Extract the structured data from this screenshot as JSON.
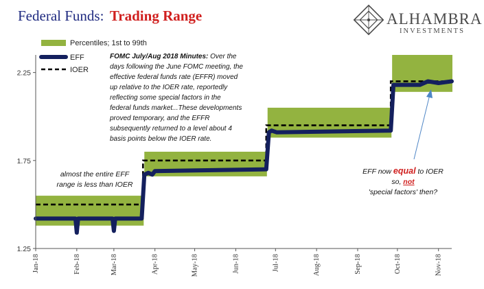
{
  "title": {
    "part1": "Federal Funds:",
    "part2": "Trading Range"
  },
  "logo": {
    "name": "ALHAMBRA",
    "sub": "INVESTMENTS"
  },
  "legend": {
    "percentiles": "Percentiles; 1st to 99th",
    "eff": "EFF",
    "ioer": "IOER"
  },
  "annotations": {
    "fomc_head": "FOMC July/Aug 2018 Minutes:",
    "fomc_lines": [
      " Over the",
      "days following the June FOMC meeting, the",
      "effective federal funds rate (EFFR) moved",
      "up relative to the IOER rate, reportedly",
      "reflecting some special factors in the",
      "federal funds market...These developments",
      "proved temporary, and the EFFR",
      "subsequently returned to a level about 4",
      "basis points below the IOER rate."
    ],
    "left_note": [
      "almost the entire EFF",
      "range is less than IOER"
    ],
    "right_note": {
      "l1a": "EFF now ",
      "l1b": "equal",
      "l1c": " to IOER",
      "l2a": "so, ",
      "l2b": "not",
      "l3": "'special factors' then?"
    }
  },
  "colors": {
    "band": "#93b340",
    "eff": "#14205e",
    "ioer": "#000000",
    "title_blue": "#1f2a80",
    "title_red": "#d0201f",
    "highlight_red": "#d0201f",
    "arrow": "#4f86c6"
  },
  "chart_data": {
    "type": "area",
    "title": "Federal Funds: Trading Range",
    "xlabel": "",
    "ylabel": "",
    "ylim": [
      1.25,
      2.35
    ],
    "yticks": [
      1.25,
      1.75,
      2.25
    ],
    "ytick_labels": [
      "1.25",
      "1.75",
      "2.25"
    ],
    "xtick_labels": [
      "Jan-18",
      "Feb-18",
      "Mar-18",
      "Apr-18",
      "May-18",
      "Jun-18",
      "Jul-18",
      "Aug-18",
      "Sep-18",
      "Oct-18",
      "Nov-18"
    ],
    "xtick_days": [
      0,
      31,
      59,
      90,
      120,
      151,
      181,
      212,
      243,
      273,
      304
    ],
    "xlim_days": [
      0,
      314
    ],
    "legend_position": "top-left",
    "grid": false,
    "series": [
      {
        "name": "Percentiles; 1st to 99th",
        "kind": "band",
        "segments": [
          {
            "from": 0,
            "to": 81,
            "low": 1.38,
            "high": 1.55
          },
          {
            "from": 82,
            "to": 174,
            "low": 1.66,
            "high": 1.8
          },
          {
            "from": 175,
            "to": 268,
            "low": 1.88,
            "high": 2.05
          },
          {
            "from": 269,
            "to": 314,
            "low": 2.14,
            "high": 2.35
          }
        ]
      },
      {
        "name": "EFF",
        "kind": "line",
        "points": [
          [
            0,
            1.42
          ],
          [
            30,
            1.42
          ],
          [
            31,
            1.34
          ],
          [
            32,
            1.42
          ],
          [
            58,
            1.42
          ],
          [
            59,
            1.35
          ],
          [
            60,
            1.42
          ],
          [
            80,
            1.42
          ],
          [
            82,
            1.67
          ],
          [
            85,
            1.68
          ],
          [
            88,
            1.67
          ],
          [
            90,
            1.69
          ],
          [
            174,
            1.7
          ],
          [
            176,
            1.91
          ],
          [
            178,
            1.92
          ],
          [
            182,
            1.91
          ],
          [
            268,
            1.92
          ],
          [
            270,
            2.18
          ],
          [
            274,
            2.18
          ],
          [
            290,
            2.18
          ],
          [
            296,
            2.2
          ],
          [
            304,
            2.19
          ],
          [
            314,
            2.2
          ]
        ]
      },
      {
        "name": "IOER",
        "kind": "line",
        "points": [
          [
            0,
            1.5
          ],
          [
            81,
            1.5
          ],
          [
            81,
            1.75
          ],
          [
            174,
            1.75
          ],
          [
            174,
            1.95
          ],
          [
            268,
            1.95
          ],
          [
            268,
            2.2
          ],
          [
            314,
            2.2
          ]
        ]
      }
    ]
  }
}
